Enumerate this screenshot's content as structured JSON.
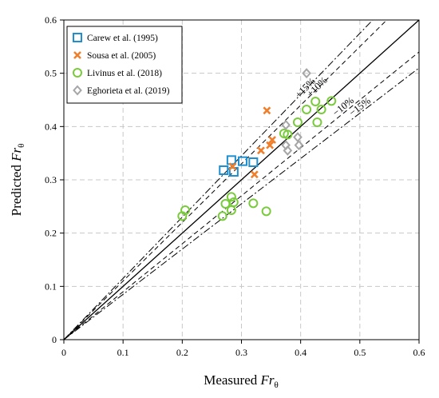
{
  "chart_data": {
    "type": "scatter",
    "xlabel": "Measured Frθ",
    "ylabel": "Predicted Frθ",
    "xlabel_parts": {
      "text": "Measured ",
      "symbol": "Fr",
      "subscript": "θ"
    },
    "ylabel_parts": {
      "text": "Predicted ",
      "symbol": "Fr",
      "subscript": "θ"
    },
    "xlim": [
      0,
      0.6
    ],
    "ylim": [
      0,
      0.6
    ],
    "x_ticks": [
      0,
      0.1,
      0.2,
      0.3,
      0.4,
      0.5,
      0.6
    ],
    "y_ticks": [
      0,
      0.1,
      0.2,
      0.3,
      0.4,
      0.5,
      0.6
    ],
    "x_tick_labels": [
      "0",
      "0.1",
      "0.2",
      "0.3",
      "0.4",
      "0.5",
      "0.6"
    ],
    "y_tick_labels": [
      "0",
      "0.1",
      "0.2",
      "0.3",
      "0.4",
      "0.5",
      "0.6"
    ],
    "grid": true,
    "legend_position": "top-left",
    "series": [
      {
        "name": "Carew et al. (1995)",
        "marker": "square",
        "color": "#1f8fcf",
        "points": [
          [
            0.27,
            0.318
          ],
          [
            0.283,
            0.337
          ],
          [
            0.287,
            0.315
          ],
          [
            0.302,
            0.335
          ],
          [
            0.32,
            0.333
          ]
        ]
      },
      {
        "name": "Sousa et al. (2005)",
        "marker": "x",
        "color": "#f07f2c",
        "points": [
          [
            0.285,
            0.325
          ],
          [
            0.322,
            0.31
          ],
          [
            0.333,
            0.355
          ],
          [
            0.343,
            0.43
          ],
          [
            0.348,
            0.365
          ],
          [
            0.352,
            0.375
          ]
        ]
      },
      {
        "name": "Livinus et al. (2018)",
        "marker": "circle",
        "color": "#7acb3c",
        "points": [
          [
            0.2,
            0.232
          ],
          [
            0.205,
            0.243
          ],
          [
            0.268,
            0.232
          ],
          [
            0.273,
            0.255
          ],
          [
            0.283,
            0.268
          ],
          [
            0.283,
            0.243
          ],
          [
            0.287,
            0.258
          ],
          [
            0.32,
            0.256
          ],
          [
            0.342,
            0.241
          ],
          [
            0.372,
            0.387
          ],
          [
            0.378,
            0.385
          ],
          [
            0.395,
            0.408
          ],
          [
            0.41,
            0.432
          ],
          [
            0.425,
            0.447
          ],
          [
            0.428,
            0.408
          ],
          [
            0.435,
            0.432
          ],
          [
            0.452,
            0.448
          ]
        ]
      },
      {
        "name": "Eghorieta et al. (2019)",
        "marker": "diamond",
        "color": "#a6a6a6",
        "points": [
          [
            0.375,
            0.403
          ],
          [
            0.375,
            0.365
          ],
          [
            0.378,
            0.355
          ],
          [
            0.395,
            0.38
          ],
          [
            0.397,
            0.365
          ],
          [
            0.41,
            0.5
          ]
        ]
      }
    ],
    "reference_lines": [
      {
        "name": "perfect-agreement-line",
        "slope": 1.0,
        "style": "solid",
        "label": ""
      },
      {
        "name": "plus-10-line",
        "slope": 1.1,
        "style": "dashed",
        "label": "+10%"
      },
      {
        "name": "minus-10-line",
        "slope": 0.9,
        "style": "dashed",
        "label": "−10%"
      },
      {
        "name": "plus-15-line",
        "slope": 1.15,
        "style": "dashdot",
        "label": "+15%"
      },
      {
        "name": "minus-15-line",
        "slope": 0.85,
        "style": "dashdot",
        "label": "−15%"
      }
    ]
  }
}
